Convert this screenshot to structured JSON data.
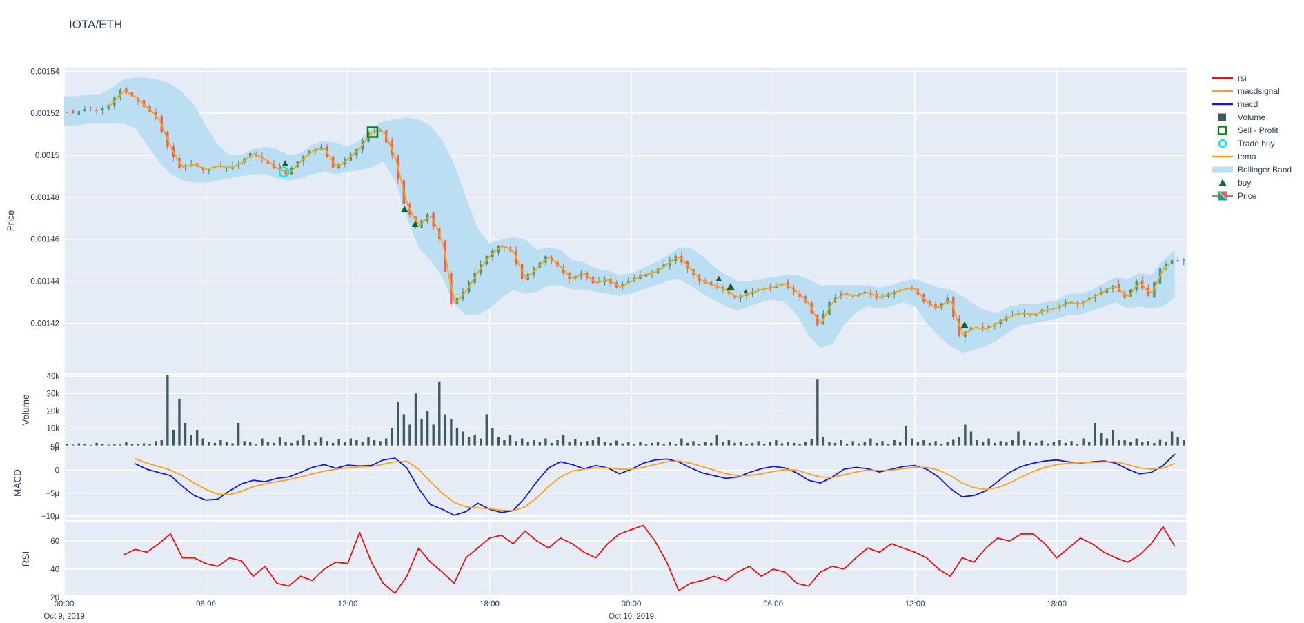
{
  "title": "IOTA/ETH",
  "colors": {
    "paper": "#ffffff",
    "plot_bg": "#e5ecf6",
    "grid": "#ffffff",
    "text": "#2a3f5f",
    "bollinger": "#bcdef2",
    "candle_up": "#2e9d8a",
    "candle_down": "#e8625a",
    "tema": "#ffa015",
    "macd": "#1515e8",
    "macdsignal": "#ffa015",
    "rsi": "#f20c0c",
    "volume": "#3d5a5e",
    "sell_profit": "#0c800c",
    "trade_buy": "#00e8f7",
    "buy": "#156329"
  },
  "legend": [
    {
      "label": "rsi",
      "type": "line",
      "color": "#f20c0c"
    },
    {
      "label": "macdsignal",
      "type": "line",
      "color": "#ffa015"
    },
    {
      "label": "macd",
      "type": "line",
      "color": "#1515e8"
    },
    {
      "label": "Volume",
      "type": "square-fill",
      "color": "#3d5a5e"
    },
    {
      "label": "Sell - Profit",
      "type": "square-open",
      "color": "#0c800c"
    },
    {
      "label": "Trade buy",
      "type": "circle-open",
      "color": "#00e8f7"
    },
    {
      "label": "tema",
      "type": "line",
      "color": "#ffa015"
    },
    {
      "label": "Bollinger Band",
      "type": "band",
      "color": "#bcdef2"
    },
    {
      "label": "buy",
      "type": "triangle",
      "color": "#156329"
    },
    {
      "label": "Price",
      "type": "candle",
      "color": "#2e9d8a"
    }
  ],
  "axes": {
    "price_title": "Price",
    "volume_title": "Volume",
    "macd_title": "MACD",
    "rsi_title": "RSI",
    "price_ticks": [
      {
        "v": 1540,
        "label": "0.00154"
      },
      {
        "v": 1520,
        "label": "0.00152"
      },
      {
        "v": 1500,
        "label": "0.0015"
      },
      {
        "v": 1480,
        "label": "0.00148"
      },
      {
        "v": 1460,
        "label": "0.00146"
      },
      {
        "v": 1440,
        "label": "0.00144"
      },
      {
        "v": 1420,
        "label": "0.00142"
      }
    ],
    "volume_ticks": [
      {
        "v": 40,
        "label": "40k"
      },
      {
        "v": 30,
        "label": "30k"
      },
      {
        "v": 20,
        "label": "20k"
      },
      {
        "v": 10,
        "label": "10k"
      },
      {
        "v": 0,
        "label": "0"
      }
    ],
    "macd_ticks": [
      {
        "v": 5,
        "label": "5μ"
      },
      {
        "v": 0,
        "label": "0"
      },
      {
        "v": -5,
        "label": "−5μ"
      },
      {
        "v": -10,
        "label": "−10μ"
      }
    ],
    "rsi_ticks": [
      {
        "v": 60,
        "label": "60"
      },
      {
        "v": 40,
        "label": "40"
      },
      {
        "v": 20,
        "label": "20"
      }
    ],
    "x_ticks": [
      {
        "t": 0,
        "label": "00:00"
      },
      {
        "t": 6,
        "label": "06:00"
      },
      {
        "t": 12,
        "label": "12:00"
      },
      {
        "t": 18,
        "label": "18:00"
      },
      {
        "t": 24,
        "label": "00:00"
      },
      {
        "t": 30,
        "label": "06:00"
      },
      {
        "t": 36,
        "label": "12:00"
      },
      {
        "t": 42,
        "label": "18:00"
      }
    ],
    "x_dates": [
      {
        "t": 0,
        "label": "Oct 9, 2019"
      },
      {
        "t": 24,
        "label": "Oct 10, 2019"
      }
    ]
  },
  "chart_data": [
    {
      "type": "candlestick",
      "name": "Price",
      "note": "prices in micro-ETH (value * 1e-6), sampled every 0.5h from Oct 9 2019 00:00",
      "t_step": 0.5,
      "close_micro": [
        1521,
        1520,
        1522,
        1521,
        1524,
        1531,
        1528,
        1523,
        1518,
        1504,
        1494,
        1496,
        1493,
        1495,
        1494,
        1496,
        1501,
        1498,
        1494,
        1491,
        1497,
        1502,
        1504,
        1494,
        1498,
        1503,
        1511,
        1512,
        1500,
        1477,
        1466,
        1472,
        1460,
        1429,
        1435,
        1444,
        1452,
        1457,
        1455,
        1441,
        1446,
        1452,
        1447,
        1441,
        1444,
        1439,
        1441,
        1437,
        1440,
        1443,
        1444,
        1448,
        1452,
        1446,
        1440,
        1438,
        1436,
        1432,
        1434,
        1436,
        1437,
        1439,
        1435,
        1430,
        1419,
        1430,
        1434,
        1433,
        1435,
        1432,
        1434,
        1436,
        1437,
        1430,
        1427,
        1432,
        1414,
        1418,
        1417,
        1420,
        1423,
        1425,
        1424,
        1426,
        1427,
        1430,
        1429,
        1432,
        1435,
        1438,
        1432,
        1440,
        1433,
        1446,
        1450
      ],
      "bollinger_upper": [
        1528,
        1528,
        1529,
        1529,
        1532,
        1536,
        1537,
        1537,
        1536,
        1534,
        1530,
        1524,
        1514,
        1505,
        1500,
        1500,
        1503,
        1504,
        1503,
        1500,
        1501,
        1505,
        1507,
        1506,
        1504,
        1507,
        1513,
        1516,
        1517,
        1518,
        1517,
        1514,
        1507,
        1496,
        1480,
        1465,
        1458,
        1460,
        1461,
        1460,
        1455,
        1456,
        1455,
        1450,
        1449,
        1446,
        1445,
        1443,
        1444,
        1446,
        1449,
        1452,
        1456,
        1456,
        1452,
        1447,
        1443,
        1440,
        1440,
        1441,
        1442,
        1443,
        1443,
        1441,
        1438,
        1438,
        1438,
        1438,
        1438,
        1437,
        1438,
        1440,
        1441,
        1439,
        1437,
        1436,
        1433,
        1429,
        1426,
        1425,
        1428,
        1429,
        1429,
        1430,
        1431,
        1434,
        1434,
        1436,
        1439,
        1442,
        1441,
        1444,
        1443,
        1450,
        1455
      ],
      "bollinger_lower": [
        1514,
        1514,
        1515,
        1515,
        1515,
        1515,
        1513,
        1505,
        1497,
        1491,
        1488,
        1487,
        1487,
        1488,
        1489,
        1490,
        1491,
        1491,
        1489,
        1488,
        1489,
        1491,
        1492,
        1491,
        1492,
        1493,
        1494,
        1497,
        1488,
        1470,
        1456,
        1450,
        1442,
        1429,
        1424,
        1424,
        1427,
        1432,
        1436,
        1434,
        1435,
        1438,
        1438,
        1436,
        1436,
        1435,
        1434,
        1433,
        1434,
        1436,
        1438,
        1440,
        1441,
        1438,
        1434,
        1431,
        1428,
        1426,
        1428,
        1430,
        1431,
        1430,
        1424,
        1414,
        1408,
        1410,
        1419,
        1425,
        1428,
        1427,
        1428,
        1430,
        1428,
        1420,
        1414,
        1409,
        1406,
        1407,
        1409,
        1412,
        1416,
        1419,
        1420,
        1421,
        1422,
        1424,
        1424,
        1426,
        1428,
        1430,
        1427,
        1428,
        1427,
        1428,
        1432
      ],
      "tema_start_t": 1.8,
      "markers": {
        "buy_triangles": [
          {
            "t": 9.35,
            "p": 1496,
            "s": 0.8
          },
          {
            "t": 14.4,
            "p": 1474,
            "s": 1.0
          },
          {
            "t": 14.85,
            "p": 1467,
            "s": 0.9
          },
          {
            "t": 27.7,
            "p": 1441,
            "s": 0.8
          },
          {
            "t": 28.2,
            "p": 1437,
            "s": 1.1
          },
          {
            "t": 28.85,
            "p": 1435,
            "s": 0.6
          },
          {
            "t": 38.1,
            "p": 1419,
            "s": 1.0
          }
        ],
        "trade_buy_circles": [
          {
            "t": 9.3,
            "p": 1492
          }
        ],
        "sell_profit_squares": [
          {
            "t": 13.05,
            "p": 1511
          }
        ]
      }
    },
    {
      "type": "bar",
      "name": "Volume",
      "note": "thousands of units, sampled every 0.25h",
      "t_step": 0.25,
      "values_k": [
        0.8,
        0.4,
        1.2,
        0.6,
        0.3,
        1.5,
        0.7,
        0.4,
        1.0,
        0.5,
        1.8,
        0.9,
        0.6,
        1.2,
        0.8,
        2.5,
        3.0,
        41,
        9,
        27,
        13,
        6,
        9,
        4,
        2,
        1.5,
        3,
        2,
        1.2,
        13,
        2.5,
        1.8,
        1,
        4,
        2,
        1.5,
        5,
        2.2,
        1.4,
        2.8,
        6,
        3,
        2,
        4.5,
        2.5,
        1.5,
        3.5,
        2,
        4,
        3,
        2,
        5,
        3,
        2.5,
        4,
        10,
        25,
        18,
        12,
        30,
        15,
        20,
        12,
        37,
        18,
        15,
        10,
        8,
        5,
        6,
        4,
        18,
        10,
        5,
        3,
        6,
        2.5,
        4,
        2,
        3,
        2,
        4,
        1.5,
        3,
        6,
        2,
        3.5,
        1.8,
        2.5,
        3,
        5,
        2,
        1.5,
        2.8,
        1.2,
        2,
        1,
        2.2,
        0.8,
        1.5,
        2,
        1,
        1.8,
        0.6,
        4,
        1.5,
        2.5,
        1,
        2,
        1.5,
        6,
        2,
        3,
        1.5,
        2.2,
        1,
        1.5,
        2.5,
        1,
        2,
        3,
        1.2,
        2.2,
        1.5,
        1,
        2,
        3.5,
        38,
        5,
        2,
        1.5,
        3,
        1,
        2.5,
        1.2,
        2,
        4,
        1.5,
        2.5,
        1,
        3,
        2,
        11,
        4,
        2,
        3,
        1.5,
        2.5,
        1,
        2,
        3.2,
        5,
        12,
        8,
        3,
        2,
        4,
        1.5,
        2.5,
        1.8,
        3,
        8,
        3,
        2,
        1.5,
        2.8,
        1.2,
        2.2,
        3,
        1.5,
        2.5,
        1,
        4,
        2,
        13,
        7,
        4,
        9,
        3,
        3,
        2,
        4,
        1.8,
        2.6,
        1.4,
        3.2,
        2,
        8,
        5,
        3
      ]
    },
    {
      "type": "line",
      "name": "MACD",
      "note": "micro units, sampled every 0.5h, null = indicator warm-up",
      "t_step": 0.5,
      "series": [
        {
          "name": "macd",
          "values": [
            null,
            null,
            null,
            null,
            null,
            null,
            1.4,
            0.2,
            -0.5,
            -1.2,
            -3.5,
            -5.5,
            -6.5,
            -6.3,
            -4.5,
            -3.0,
            -2.2,
            -2.5,
            -1.8,
            -1.5,
            -0.5,
            0.6,
            1.2,
            0.4,
            1.1,
            0.9,
            1.0,
            2.2,
            2.6,
            0.5,
            -4.0,
            -7.5,
            -8.5,
            -9.8,
            -9.0,
            -7.2,
            -8.5,
            -9.2,
            -8.8,
            -6.0,
            -2.5,
            0.5,
            1.8,
            1.2,
            0.3,
            1.0,
            0.5,
            -0.8,
            0.2,
            1.5,
            2.2,
            2.4,
            1.8,
            0.5,
            -0.6,
            -1.2,
            -1.8,
            -1.5,
            -0.5,
            0.3,
            0.8,
            0.5,
            -0.6,
            -2.2,
            -2.8,
            -1.5,
            0.2,
            0.6,
            0.3,
            -0.4,
            0.2,
            0.8,
            1.0,
            0.2,
            -1.5,
            -4.0,
            -5.8,
            -5.5,
            -4.5,
            -2.5,
            -0.5,
            0.8,
            1.5,
            2.0,
            2.2,
            1.8,
            1.5,
            1.8,
            2.0,
            1.5,
            0.2,
            -0.8,
            -0.5,
            1.0,
            3.5
          ]
        },
        {
          "name": "macdsignal",
          "values": [
            null,
            null,
            null,
            null,
            null,
            null,
            2.5,
            1.5,
            0.8,
            0.0,
            -1.2,
            -2.8,
            -4.2,
            -5.2,
            -5.3,
            -4.6,
            -3.6,
            -3.0,
            -2.5,
            -2.1,
            -1.5,
            -0.8,
            -0.2,
            0.2,
            0.5,
            0.7,
            0.8,
            1.3,
            1.8,
            1.9,
            0.2,
            -2.5,
            -5.0,
            -7.0,
            -8.0,
            -8.2,
            -8.4,
            -8.7,
            -8.8,
            -8.0,
            -6.0,
            -3.5,
            -1.5,
            -0.2,
            0.2,
            0.5,
            0.5,
            0.2,
            0.2,
            0.6,
            1.2,
            1.8,
            2.0,
            1.5,
            0.8,
            0.0,
            -0.8,
            -1.2,
            -1.2,
            -0.8,
            -0.3,
            0.1,
            0.0,
            -0.8,
            -1.5,
            -1.6,
            -1.0,
            -0.4,
            0.0,
            -0.1,
            0.0,
            0.3,
            0.6,
            0.6,
            0.0,
            -1.2,
            -2.8,
            -3.8,
            -4.2,
            -3.8,
            -2.8,
            -1.5,
            -0.3,
            0.6,
            1.2,
            1.5,
            1.6,
            1.7,
            1.8,
            1.8,
            1.2,
            0.5,
            0.2,
            0.4,
            1.5
          ]
        }
      ]
    },
    {
      "type": "line",
      "name": "RSI",
      "t_step": 0.5,
      "series": [
        {
          "name": "rsi",
          "values": [
            null,
            null,
            null,
            null,
            null,
            50,
            54,
            52,
            58,
            65,
            48,
            48,
            44,
            42,
            48,
            46,
            35,
            42,
            30,
            28,
            35,
            32,
            40,
            45,
            44,
            66,
            45,
            30,
            23,
            35,
            55,
            45,
            38,
            30,
            48,
            55,
            62,
            64,
            58,
            67,
            60,
            55,
            62,
            58,
            52,
            48,
            58,
            65,
            68,
            71,
            60,
            45,
            25,
            30,
            32,
            35,
            32,
            38,
            42,
            35,
            40,
            38,
            30,
            28,
            38,
            42,
            40,
            48,
            55,
            52,
            58,
            55,
            52,
            48,
            40,
            35,
            48,
            45,
            55,
            62,
            60,
            65,
            65,
            58,
            48,
            55,
            62,
            58,
            52,
            48,
            45,
            50,
            58,
            70,
            56
          ]
        }
      ]
    }
  ]
}
